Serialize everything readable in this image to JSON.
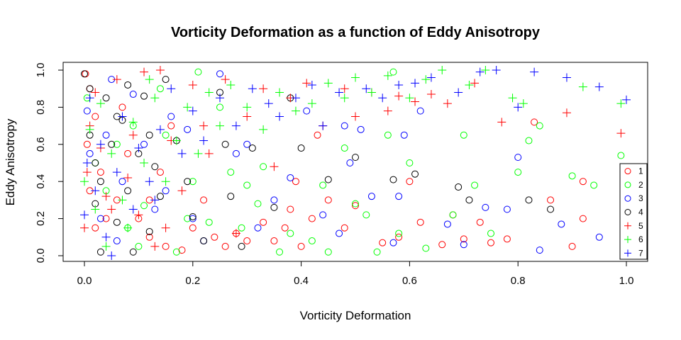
{
  "chart_data": {
    "type": "scatter",
    "title": "Vorticity Deformation as a function of Eddy Anisotropy",
    "xlabel": "Vorticity Deformation",
    "ylabel": "Eddy Anisotropy",
    "xlim": [
      0,
      1
    ],
    "ylim": [
      0,
      1
    ],
    "xticks": [
      "0.0",
      "0.2",
      "0.4",
      "0.6",
      "0.8",
      "1.0"
    ],
    "yticks": [
      "0.0",
      "0.2",
      "0.4",
      "0.6",
      "0.8",
      "1.0"
    ],
    "grid": false,
    "legend_position": "bottom-right",
    "series": [
      {
        "name": "1",
        "color": "#ff0000",
        "marker": "circle",
        "points": [
          [
            0.002,
            0.98
          ],
          [
            0.01,
            0.9
          ],
          [
            0.02,
            0.75
          ],
          [
            0.005,
            0.6
          ],
          [
            0.03,
            0.45
          ],
          [
            0.01,
            0.35
          ],
          [
            0.04,
            0.2
          ],
          [
            0.02,
            0.15
          ],
          [
            0.06,
            0.3
          ],
          [
            0.08,
            0.55
          ],
          [
            0.1,
            0.2
          ],
          [
            0.12,
            0.1
          ],
          [
            0.15,
            0.05
          ],
          [
            0.18,
            0.03
          ],
          [
            0.2,
            0.15
          ],
          [
            0.22,
            0.3
          ],
          [
            0.24,
            0.1
          ],
          [
            0.26,
            0.05
          ],
          [
            0.28,
            0.12
          ],
          [
            0.3,
            0.08
          ],
          [
            0.33,
            0.18
          ],
          [
            0.35,
            0.08
          ],
          [
            0.37,
            0.15
          ],
          [
            0.38,
            0.25
          ],
          [
            0.39,
            0.4
          ],
          [
            0.4,
            0.05
          ],
          [
            0.42,
            0.2
          ],
          [
            0.43,
            0.65
          ],
          [
            0.45,
            0.3
          ],
          [
            0.48,
            0.15
          ],
          [
            0.5,
            0.27
          ],
          [
            0.55,
            0.07
          ],
          [
            0.58,
            0.1
          ],
          [
            0.6,
            0.4
          ],
          [
            0.62,
            0.18
          ],
          [
            0.66,
            0.06
          ],
          [
            0.68,
            0.22
          ],
          [
            0.7,
            0.09
          ],
          [
            0.73,
            0.18
          ],
          [
            0.75,
            0.07
          ],
          [
            0.78,
            0.09
          ],
          [
            0.83,
            0.72
          ],
          [
            0.86,
            0.3
          ],
          [
            0.9,
            0.05
          ],
          [
            0.92,
            0.4
          ],
          [
            0.92,
            0.2
          ],
          [
            0.14,
            0.45
          ],
          [
            0.16,
            0.7
          ],
          [
            0.12,
            0.3
          ],
          [
            0.07,
            0.8
          ]
        ]
      },
      {
        "name": "2",
        "color": "#00ff00",
        "marker": "circle",
        "points": [
          [
            0.005,
            0.85
          ],
          [
            0.02,
            0.5
          ],
          [
            0.04,
            0.35
          ],
          [
            0.06,
            0.6
          ],
          [
            0.08,
            0.15
          ],
          [
            0.1,
            0.05
          ],
          [
            0.15,
            0.65
          ],
          [
            0.2,
            0.4
          ],
          [
            0.21,
            0.99
          ],
          [
            0.23,
            0.18
          ],
          [
            0.25,
            0.8
          ],
          [
            0.27,
            0.45
          ],
          [
            0.29,
            0.15
          ],
          [
            0.3,
            0.38
          ],
          [
            0.32,
            0.28
          ],
          [
            0.33,
            0.48
          ],
          [
            0.36,
            0.02
          ],
          [
            0.38,
            0.12
          ],
          [
            0.42,
            0.08
          ],
          [
            0.44,
            0.38
          ],
          [
            0.45,
            0.02
          ],
          [
            0.48,
            0.58
          ],
          [
            0.5,
            0.28
          ],
          [
            0.52,
            0.22
          ],
          [
            0.54,
            0.02
          ],
          [
            0.56,
            0.65
          ],
          [
            0.57,
            0.99
          ],
          [
            0.58,
            0.12
          ],
          [
            0.6,
            0.5
          ],
          [
            0.63,
            0.04
          ],
          [
            0.68,
            0.22
          ],
          [
            0.7,
            0.65
          ],
          [
            0.72,
            0.38
          ],
          [
            0.75,
            0.12
          ],
          [
            0.8,
            0.45
          ],
          [
            0.82,
            0.62
          ],
          [
            0.84,
            0.7
          ],
          [
            0.9,
            0.43
          ],
          [
            0.94,
            0.38
          ],
          [
            0.99,
            0.54
          ],
          [
            0.19,
            0.2
          ],
          [
            0.17,
            0.02
          ],
          [
            0.09,
            0.7
          ],
          [
            0.11,
            0.27
          ],
          [
            0.14,
            0.9
          ]
        ]
      },
      {
        "name": "3",
        "color": "#0000ff",
        "marker": "circle",
        "points": [
          [
            0.005,
            0.78
          ],
          [
            0.01,
            0.55
          ],
          [
            0.03,
            0.2
          ],
          [
            0.05,
            0.95
          ],
          [
            0.07,
            0.4
          ],
          [
            0.09,
            0.87
          ],
          [
            0.11,
            0.6
          ],
          [
            0.13,
            0.25
          ],
          [
            0.16,
            0.75
          ],
          [
            0.19,
            0.68
          ],
          [
            0.2,
            0.2
          ],
          [
            0.22,
            0.08
          ],
          [
            0.25,
            0.98
          ],
          [
            0.28,
            0.55
          ],
          [
            0.3,
            0.6
          ],
          [
            0.32,
            0.15
          ],
          [
            0.35,
            0.3
          ],
          [
            0.38,
            0.42
          ],
          [
            0.41,
            0.78
          ],
          [
            0.44,
            0.22
          ],
          [
            0.47,
            0.12
          ],
          [
            0.48,
            0.7
          ],
          [
            0.49,
            0.5
          ],
          [
            0.51,
            0.68
          ],
          [
            0.53,
            0.32
          ],
          [
            0.57,
            0.07
          ],
          [
            0.58,
            0.32
          ],
          [
            0.59,
            0.65
          ],
          [
            0.62,
            0.78
          ],
          [
            0.67,
            0.17
          ],
          [
            0.7,
            0.06
          ],
          [
            0.74,
            0.26
          ],
          [
            0.78,
            0.25
          ],
          [
            0.8,
            0.53
          ],
          [
            0.84,
            0.03
          ],
          [
            0.88,
            0.17
          ],
          [
            0.95,
            0.1
          ],
          [
            0.15,
            0.35
          ],
          [
            0.06,
            0.08
          ],
          [
            0.04,
            0.65
          ]
        ]
      },
      {
        "name": "4",
        "color": "#000000",
        "marker": "circle",
        "points": [
          [
            0.0,
            0.98
          ],
          [
            0.01,
            0.9
          ],
          [
            0.02,
            0.5
          ],
          [
            0.01,
            0.65
          ],
          [
            0.03,
            0.4
          ],
          [
            0.02,
            0.28
          ],
          [
            0.04,
            0.85
          ],
          [
            0.05,
            0.6
          ],
          [
            0.06,
            0.18
          ],
          [
            0.07,
            0.73
          ],
          [
            0.08,
            0.35
          ],
          [
            0.09,
            0.02
          ],
          [
            0.1,
            0.55
          ],
          [
            0.11,
            0.86
          ],
          [
            0.12,
            0.13
          ],
          [
            0.13,
            0.48
          ],
          [
            0.14,
            0.32
          ],
          [
            0.15,
            0.95
          ],
          [
            0.17,
            0.62
          ],
          [
            0.19,
            0.4
          ],
          [
            0.2,
            0.21
          ],
          [
            0.22,
            0.08
          ],
          [
            0.25,
            0.88
          ],
          [
            0.26,
            0.6
          ],
          [
            0.27,
            0.32
          ],
          [
            0.29,
            0.05
          ],
          [
            0.31,
            0.58
          ],
          [
            0.35,
            0.26
          ],
          [
            0.38,
            0.85
          ],
          [
            0.4,
            0.58
          ],
          [
            0.45,
            0.41
          ],
          [
            0.5,
            0.53
          ],
          [
            0.57,
            0.41
          ],
          [
            0.61,
            0.44
          ],
          [
            0.69,
            0.37
          ],
          [
            0.71,
            0.3
          ],
          [
            0.82,
            0.3
          ],
          [
            0.86,
            0.25
          ],
          [
            0.03,
            0.02
          ],
          [
            0.06,
            0.75
          ],
          [
            0.08,
            0.92
          ],
          [
            0.12,
            0.65
          ]
        ]
      },
      {
        "name": "5",
        "color": "#ff0000",
        "marker": "plus",
        "points": [
          [
            0.0,
            0.15
          ],
          [
            0.005,
            0.45
          ],
          [
            0.01,
            0.7
          ],
          [
            0.02,
            0.88
          ],
          [
            0.03,
            0.58
          ],
          [
            0.04,
            0.32
          ],
          [
            0.06,
            0.95
          ],
          [
            0.08,
            0.42
          ],
          [
            0.1,
            0.22
          ],
          [
            0.11,
            0.99
          ],
          [
            0.14,
            1.0
          ],
          [
            0.16,
            0.62
          ],
          [
            0.18,
            0.35
          ],
          [
            0.2,
            0.92
          ],
          [
            0.23,
            0.55
          ],
          [
            0.26,
            0.95
          ],
          [
            0.28,
            0.12
          ],
          [
            0.3,
            0.75
          ],
          [
            0.33,
            0.9
          ],
          [
            0.35,
            0.48
          ],
          [
            0.38,
            0.85
          ],
          [
            0.41,
            0.93
          ],
          [
            0.44,
            0.7
          ],
          [
            0.48,
            0.9
          ],
          [
            0.5,
            0.75
          ],
          [
            0.53,
            0.88
          ],
          [
            0.56,
            0.78
          ],
          [
            0.58,
            0.86
          ],
          [
            0.61,
            0.83
          ],
          [
            0.64,
            0.87
          ],
          [
            0.67,
            0.82
          ],
          [
            0.72,
            0.93
          ],
          [
            0.77,
            0.72
          ],
          [
            0.89,
            0.77
          ],
          [
            0.99,
            0.66
          ],
          [
            0.13,
            0.05
          ],
          [
            0.09,
            0.65
          ],
          [
            0.22,
            0.7
          ],
          [
            0.15,
            0.15
          ],
          [
            0.05,
            0.25
          ]
        ]
      },
      {
        "name": "6",
        "color": "#00ff00",
        "marker": "plus",
        "points": [
          [
            0.0,
            0.4
          ],
          [
            0.01,
            0.68
          ],
          [
            0.02,
            0.25
          ],
          [
            0.03,
            0.82
          ],
          [
            0.05,
            0.55
          ],
          [
            0.07,
            0.3
          ],
          [
            0.09,
            0.72
          ],
          [
            0.11,
            0.5
          ],
          [
            0.13,
            0.85
          ],
          [
            0.15,
            0.4
          ],
          [
            0.17,
            0.62
          ],
          [
            0.19,
            0.8
          ],
          [
            0.21,
            0.55
          ],
          [
            0.23,
            0.88
          ],
          [
            0.25,
            0.7
          ],
          [
            0.27,
            0.92
          ],
          [
            0.3,
            0.8
          ],
          [
            0.33,
            0.68
          ],
          [
            0.36,
            0.88
          ],
          [
            0.39,
            0.78
          ],
          [
            0.42,
            0.82
          ],
          [
            0.45,
            0.93
          ],
          [
            0.48,
            0.85
          ],
          [
            0.5,
            0.96
          ],
          [
            0.53,
            0.88
          ],
          [
            0.56,
            0.97
          ],
          [
            0.6,
            0.85
          ],
          [
            0.63,
            0.95
          ],
          [
            0.66,
            1.0
          ],
          [
            0.71,
            0.92
          ],
          [
            0.74,
            1.0
          ],
          [
            0.79,
            0.85
          ],
          [
            0.81,
            0.82
          ],
          [
            0.92,
            0.91
          ],
          [
            0.99,
            0.82
          ],
          [
            0.08,
            0.15
          ],
          [
            0.12,
            0.95
          ],
          [
            0.04,
            0.05
          ]
        ]
      },
      {
        "name": "7",
        "color": "#0000ff",
        "marker": "plus",
        "points": [
          [
            0.0,
            0.22
          ],
          [
            0.005,
            0.5
          ],
          [
            0.01,
            0.85
          ],
          [
            0.02,
            0.35
          ],
          [
            0.03,
            0.6
          ],
          [
            0.04,
            0.1
          ],
          [
            0.06,
            0.45
          ],
          [
            0.07,
            0.75
          ],
          [
            0.09,
            0.25
          ],
          [
            0.1,
            0.58
          ],
          [
            0.12,
            0.4
          ],
          [
            0.14,
            0.68
          ],
          [
            0.16,
            0.9
          ],
          [
            0.18,
            0.55
          ],
          [
            0.2,
            0.78
          ],
          [
            0.22,
            0.62
          ],
          [
            0.25,
            0.85
          ],
          [
            0.28,
            0.7
          ],
          [
            0.31,
            0.9
          ],
          [
            0.34,
            0.82
          ],
          [
            0.36,
            0.75
          ],
          [
            0.39,
            0.85
          ],
          [
            0.42,
            0.92
          ],
          [
            0.44,
            0.7
          ],
          [
            0.47,
            0.88
          ],
          [
            0.52,
            0.9
          ],
          [
            0.55,
            0.85
          ],
          [
            0.58,
            0.92
          ],
          [
            0.61,
            0.93
          ],
          [
            0.64,
            0.96
          ],
          [
            0.69,
            0.88
          ],
          [
            0.73,
            0.99
          ],
          [
            0.76,
            1.0
          ],
          [
            0.8,
            0.8
          ],
          [
            0.83,
            0.99
          ],
          [
            0.89,
            0.96
          ],
          [
            0.95,
            0.91
          ],
          [
            1.0,
            0.84
          ],
          [
            0.05,
            0.0
          ],
          [
            0.13,
            0.3
          ]
        ]
      }
    ]
  }
}
